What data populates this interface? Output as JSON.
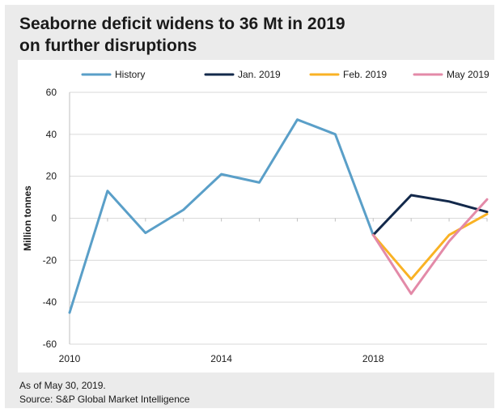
{
  "chart_data": {
    "type": "line",
    "title_lines": [
      "Seaborne deficit widens to 36 Mt in 2019",
      "on further disruptions"
    ],
    "ylabel": "Million tonnes",
    "xlabel": "",
    "xlim": [
      2010,
      2021
    ],
    "ylim": [
      -60,
      60
    ],
    "y_ticks": [
      60,
      40,
      20,
      0,
      -20,
      -40,
      -60
    ],
    "y_tick_labels": [
      "60",
      "40",
      "20",
      "0",
      "-20",
      "-40",
      "-60"
    ],
    "x_ticks": [
      2010,
      2014,
      2018
    ],
    "x_tick_labels": [
      "2010",
      "2014",
      "2018"
    ],
    "grid": "horizontal",
    "legend_position": "top",
    "series": [
      {
        "name": "History",
        "color": "#5a9fc8",
        "x": [
          2010,
          2011,
          2012,
          2013,
          2014,
          2015,
          2016,
          2017,
          2018
        ],
        "y": [
          -45,
          13,
          -7,
          4,
          21,
          17,
          47,
          40,
          -8
        ]
      },
      {
        "name": "Jan. 2019",
        "color": "#13294b",
        "x": [
          2018,
          2019,
          2020,
          2021
        ],
        "y": [
          -8,
          11,
          8,
          3
        ]
      },
      {
        "name": "Feb. 2019",
        "color": "#f9b224",
        "x": [
          2018,
          2019,
          2020,
          2021
        ],
        "y": [
          -8,
          -29,
          -8,
          2
        ]
      },
      {
        "name": "May 2019",
        "color": "#e38aa8",
        "x": [
          2018,
          2019,
          2020,
          2021
        ],
        "y": [
          -8,
          -36,
          -11,
          9
        ]
      }
    ]
  },
  "footer": {
    "as_of": "As of May 30, 2019.",
    "source": "Source: S&P Global Market Intelligence"
  }
}
